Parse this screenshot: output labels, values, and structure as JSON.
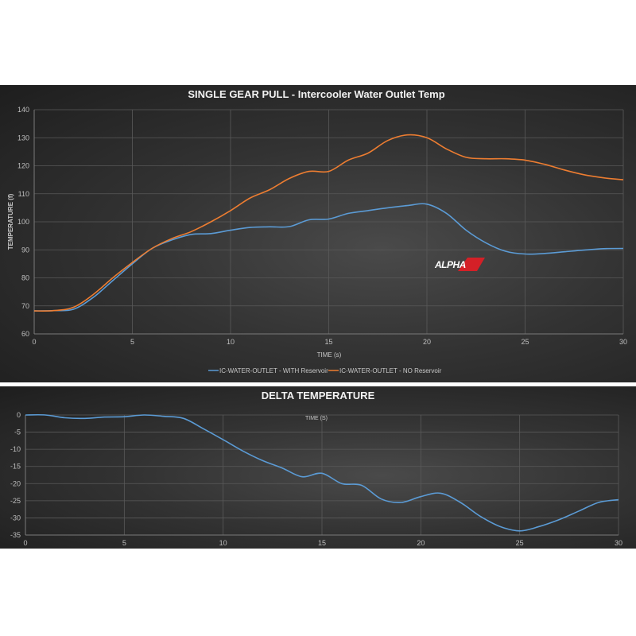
{
  "chart_data": [
    {
      "type": "line",
      "title": "SINGLE GEAR PULL - Intercooler Water Outlet Temp",
      "xlabel": "TIME (s)",
      "ylabel": "TEMPERATURE (f)",
      "xlim": [
        0,
        30
      ],
      "ylim": [
        60,
        140
      ],
      "xticks": [
        0,
        5,
        10,
        15,
        20,
        25,
        30
      ],
      "yticks": [
        60,
        70,
        80,
        90,
        100,
        110,
        120,
        130,
        140
      ],
      "grid": true,
      "legend_position": "bottom",
      "x": [
        0,
        1,
        2,
        3,
        4,
        5,
        6,
        7,
        8,
        9,
        10,
        11,
        12,
        13,
        14,
        15,
        16,
        17,
        18,
        19,
        20,
        21,
        22,
        23,
        24,
        25,
        26,
        27,
        28,
        29,
        30
      ],
      "series": [
        {
          "name": "IC-WATER-OUTLET - WITH Reservoir",
          "color": "#5b9bd5",
          "values": [
            68.2,
            68.3,
            68.8,
            73,
            79,
            85,
            90.5,
            93.5,
            95.5,
            95.8,
            97,
            98,
            98.2,
            98.3,
            100.7,
            101,
            103,
            104,
            105,
            105.8,
            106.3,
            103,
            97,
            92.5,
            89.5,
            88.5,
            88.7,
            89.3,
            89.9,
            90.4,
            90.5
          ]
        },
        {
          "name": "IC-WATER-OUTLET - NO Reservoir",
          "color": "#ed7d31",
          "values": [
            68.2,
            68.3,
            69.5,
            74,
            80,
            85.5,
            90.5,
            94,
            96.5,
            100,
            104,
            108.5,
            111.5,
            115.5,
            118,
            118,
            122,
            124.5,
            129,
            131,
            130,
            126,
            123,
            122.5,
            122.5,
            122,
            120.5,
            118.5,
            116.8,
            115.7,
            115
          ]
        }
      ],
      "annotations": [
        "ALPHA logo watermark"
      ]
    },
    {
      "type": "line",
      "title": "DELTA TEMPERATURE",
      "xlabel": "TIME (S)",
      "ylabel": "",
      "xlim": [
        0,
        30
      ],
      "ylim": [
        -35,
        0
      ],
      "xticks": [
        0,
        5,
        10,
        15,
        20,
        25,
        30
      ],
      "yticks": [
        0,
        -5,
        -10,
        -15,
        -20,
        -25,
        -30,
        -35
      ],
      "grid": true,
      "x": [
        0,
        1,
        2,
        3,
        4,
        5,
        6,
        7,
        8,
        9,
        10,
        11,
        12,
        13,
        14,
        15,
        16,
        17,
        18,
        19,
        20,
        21,
        22,
        23,
        24,
        25,
        26,
        27,
        28,
        29,
        30
      ],
      "series": [
        {
          "name": "Delta Temperature",
          "color": "#5b9bd5",
          "values": [
            0,
            0,
            -0.8,
            -1,
            -0.6,
            -0.5,
            0,
            -0.4,
            -1,
            -4,
            -7.2,
            -10.5,
            -13.3,
            -15.5,
            -18,
            -17,
            -20,
            -20.5,
            -24.5,
            -25.5,
            -23.8,
            -22.8,
            -25.5,
            -29.5,
            -32.5,
            -33.8,
            -32.5,
            -30.5,
            -28,
            -25.5,
            -24.7
          ]
        }
      ]
    }
  ],
  "top": {
    "title": "SINGLE GEAR PULL - Intercooler Water Outlet Temp",
    "xlabel": "TIME (s)",
    "ylabel": "TEMPERATURE (f)",
    "legend": [
      "IC-WATER-OUTLET - WITH Reservoir",
      "IC-WATER-OUTLET - NO Reservoir"
    ],
    "logo": {
      "text": "ALPHA",
      "badge_color": "#d42027"
    }
  },
  "bottom": {
    "title": "DELTA TEMPERATURE",
    "xlabel": "TIME (S)"
  }
}
